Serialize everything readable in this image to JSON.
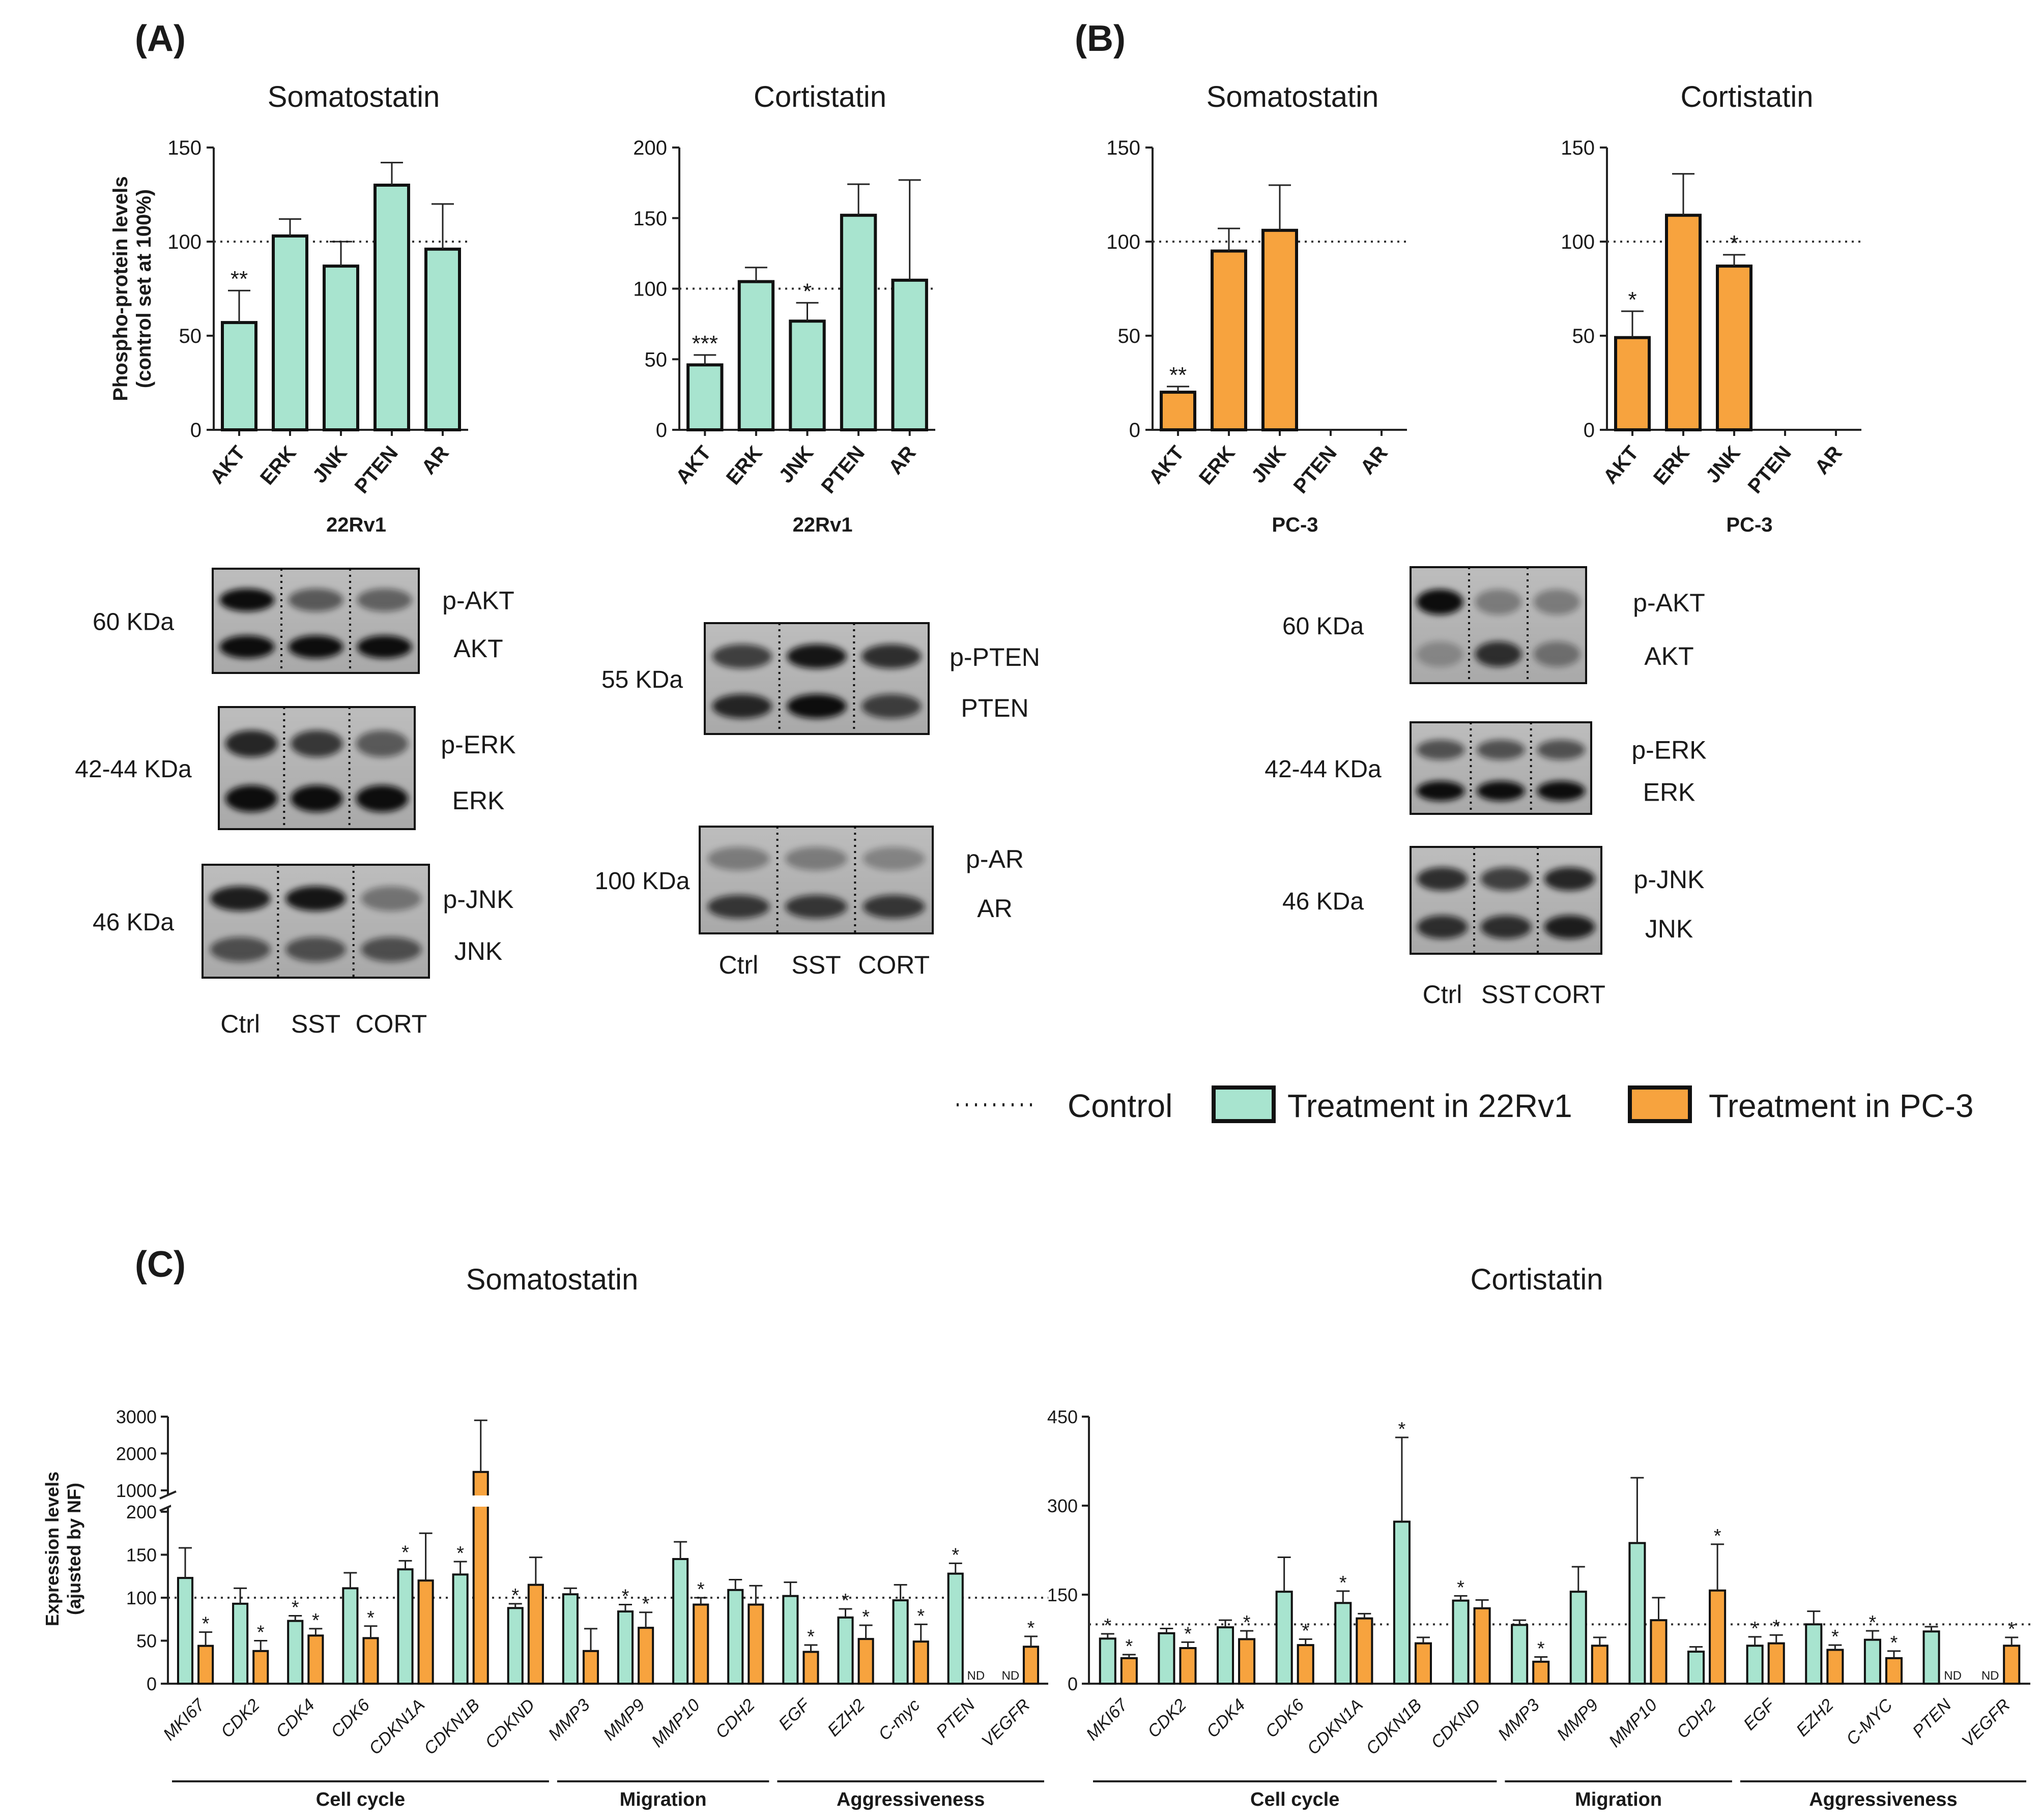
{
  "colors": {
    "green": "#a8e4cf",
    "orange": "#f7a33e",
    "stroke": "#111111"
  },
  "panels": {
    "A": "(A)",
    "B": "(B)",
    "C": "(C)"
  },
  "legend": {
    "control": "Control",
    "green": "Treatment in 22Rv1",
    "orange": "Treatment in PC-3"
  },
  "chart_data": [
    {
      "id": "A-SST",
      "type": "bar",
      "title": "Somatostatin",
      "ylabel": "Phospho-protein levels (control set at 100%)",
      "xlabel": "22Rv1",
      "categories": [
        "AKT",
        "ERK",
        "JNK",
        "PTEN",
        "AR"
      ],
      "values": [
        57,
        103,
        87,
        130,
        96
      ],
      "errors": [
        17,
        9,
        13,
        12,
        24
      ],
      "sig": [
        "**",
        "",
        "",
        "",
        ""
      ],
      "ylim": [
        0,
        150
      ],
      "yticks": [
        0,
        50,
        100,
        150
      ],
      "reference": 100,
      "color": "green"
    },
    {
      "id": "A-CORT",
      "type": "bar",
      "title": "Cortistatin",
      "xlabel": "22Rv1",
      "categories": [
        "AKT",
        "ERK",
        "JNK",
        "PTEN",
        "AR"
      ],
      "values": [
        46,
        105,
        77,
        152,
        106
      ],
      "errors": [
        7,
        10,
        13,
        22,
        71
      ],
      "sig": [
        "***",
        "",
        "*",
        "",
        ""
      ],
      "ylim": [
        0,
        200
      ],
      "yticks": [
        0,
        50,
        100,
        150,
        200
      ],
      "reference": 100,
      "color": "green"
    },
    {
      "id": "B-SST",
      "type": "bar",
      "title": "Somatostatin",
      "xlabel": "PC-3",
      "categories": [
        "AKT",
        "ERK",
        "JNK",
        "PTEN",
        "AR"
      ],
      "values": [
        20,
        95,
        106,
        null,
        null
      ],
      "errors": [
        3,
        12,
        24,
        null,
        null
      ],
      "sig": [
        "**",
        "",
        "",
        "",
        ""
      ],
      "ylim": [
        0,
        150
      ],
      "yticks": [
        0,
        50,
        100,
        150
      ],
      "reference": 100,
      "color": "orange"
    },
    {
      "id": "B-CORT",
      "type": "bar",
      "title": "Cortistatin",
      "xlabel": "PC-3",
      "categories": [
        "AKT",
        "ERK",
        "JNK",
        "PTEN",
        "AR"
      ],
      "values": [
        49,
        114,
        87,
        null,
        null
      ],
      "errors": [
        14,
        22,
        6,
        null,
        null
      ],
      "sig": [
        "*",
        "",
        "*",
        "",
        ""
      ],
      "ylim": [
        0,
        150
      ],
      "yticks": [
        0,
        50,
        100,
        150
      ],
      "reference": 100,
      "color": "orange"
    },
    {
      "id": "C-SST",
      "type": "bar",
      "title": "Somatostatin",
      "ylabel": "Expression levels (ajusted by NF)",
      "categories": [
        "MKI67",
        "CDK2",
        "CDK4",
        "CDK6",
        "CDKN1A",
        "CDKN1B",
        "CDKND",
        "MMP3",
        "MMP9",
        "MMP10",
        "CDH2",
        "EGF",
        "EZH2",
        "C-myc",
        "PTEN",
        "VEGFR"
      ],
      "series": [
        {
          "name": "Treatment in 22Rv1",
          "color": "green",
          "values": [
            123,
            93,
            73,
            111,
            133,
            127,
            88,
            104,
            84,
            145,
            109,
            102,
            77,
            97,
            128,
            null
          ],
          "errors": [
            35,
            18,
            6,
            18,
            10,
            15,
            5,
            7,
            8,
            20,
            12,
            16,
            10,
            18,
            12,
            null
          ],
          "sig": [
            "",
            "",
            "*",
            "",
            "*",
            "*",
            "*",
            "",
            "*",
            "",
            "",
            "",
            "*",
            "",
            "*",
            ""
          ]
        },
        {
          "name": "Treatment in PC-3",
          "color": "orange",
          "values": [
            44,
            38,
            56,
            53,
            120,
            1500,
            115,
            38,
            65,
            92,
            92,
            37,
            52,
            49,
            null,
            43
          ],
          "errors": [
            16,
            12,
            8,
            14,
            55,
            1400,
            32,
            26,
            18,
            8,
            22,
            8,
            16,
            20,
            null,
            12
          ],
          "sig": [
            "*",
            "*",
            "*",
            "*",
            "",
            "",
            "",
            "",
            "*",
            "*",
            "",
            "*",
            "*",
            "*",
            "",
            "*"
          ]
        }
      ],
      "na_label": "ND",
      "yticks_lower": [
        0,
        50,
        100,
        150,
        200
      ],
      "yticks_upper": [
        1000,
        2000,
        3000
      ],
      "ylim": [
        0,
        3000
      ],
      "axis_break": [
        200,
        1000
      ],
      "reference": 100,
      "groups": [
        {
          "label": "Cell cycle"
        },
        {
          "label": "Migration"
        },
        {
          "label": "Aggressiveness"
        }
      ]
    },
    {
      "id": "C-CORT",
      "type": "bar",
      "title": "Cortistatin",
      "categories": [
        "MKI67",
        "CDK2",
        "CDK4",
        "CDK6",
        "CDKN1A",
        "CDKN1B",
        "CDKND",
        "MMP3",
        "MMP9",
        "MMP10",
        "CDH2",
        "EGF",
        "EZH2",
        "C-MYC",
        "PTEN",
        "VEGFR"
      ],
      "series": [
        {
          "name": "Treatment in 22Rv1",
          "color": "green",
          "values": [
            76,
            85,
            95,
            155,
            136,
            273,
            140,
            99,
            155,
            237,
            54,
            64,
            100,
            74,
            88,
            null
          ],
          "errors": [
            8,
            8,
            12,
            58,
            20,
            142,
            8,
            8,
            42,
            110,
            8,
            15,
            22,
            15,
            8,
            null
          ],
          "sig": [
            "*",
            "",
            "",
            "",
            "*",
            "*",
            "*",
            "",
            "",
            "",
            "",
            "*",
            "",
            "*",
            "",
            ""
          ]
        },
        {
          "name": "Treatment in PC-3",
          "color": "orange",
          "values": [
            43,
            60,
            75,
            65,
            110,
            68,
            127,
            37,
            64,
            107,
            157,
            68,
            57,
            43,
            null,
            64
          ],
          "errors": [
            6,
            10,
            14,
            10,
            8,
            10,
            14,
            8,
            14,
            38,
            78,
            14,
            8,
            12,
            null,
            14
          ],
          "sig": [
            "*",
            "*",
            "*",
            "*",
            "",
            "",
            "",
            "*",
            "",
            "",
            "*",
            "*",
            "*",
            "*",
            "",
            "*"
          ]
        }
      ],
      "na_label": "ND",
      "yticks": [
        0,
        150,
        300,
        450
      ],
      "ylim": [
        0,
        450
      ],
      "reference": 100,
      "groups": [
        {
          "label": "Cell cycle"
        },
        {
          "label": "Migration"
        },
        {
          "label": "Aggressiveness"
        }
      ]
    }
  ],
  "blots": {
    "A_left": {
      "kda": [
        "60 KDa",
        "42-44 KDa",
        "46 KDa"
      ],
      "labels": [
        [
          "p-AKT",
          "AKT"
        ],
        [
          "p-ERK",
          "ERK"
        ],
        [
          "p-JNK",
          "JNK"
        ]
      ],
      "lanes": [
        "Ctrl",
        "SST",
        "CORT"
      ]
    },
    "A_right": {
      "kda": [
        "55 KDa",
        "100 KDa"
      ],
      "labels": [
        [
          "p-PTEN",
          "PTEN"
        ],
        [
          "p-AR",
          "AR"
        ]
      ],
      "lanes": [
        "Ctrl",
        "SST",
        "CORT"
      ]
    },
    "B": {
      "kda": [
        "60 KDa",
        "42-44 KDa",
        "46 KDa"
      ],
      "labels": [
        [
          "p-AKT",
          "AKT"
        ],
        [
          "p-ERK",
          "ERK"
        ],
        [
          "p-JNK",
          "JNK"
        ]
      ],
      "lanes": [
        "Ctrl",
        "SST",
        "CORT"
      ]
    }
  }
}
